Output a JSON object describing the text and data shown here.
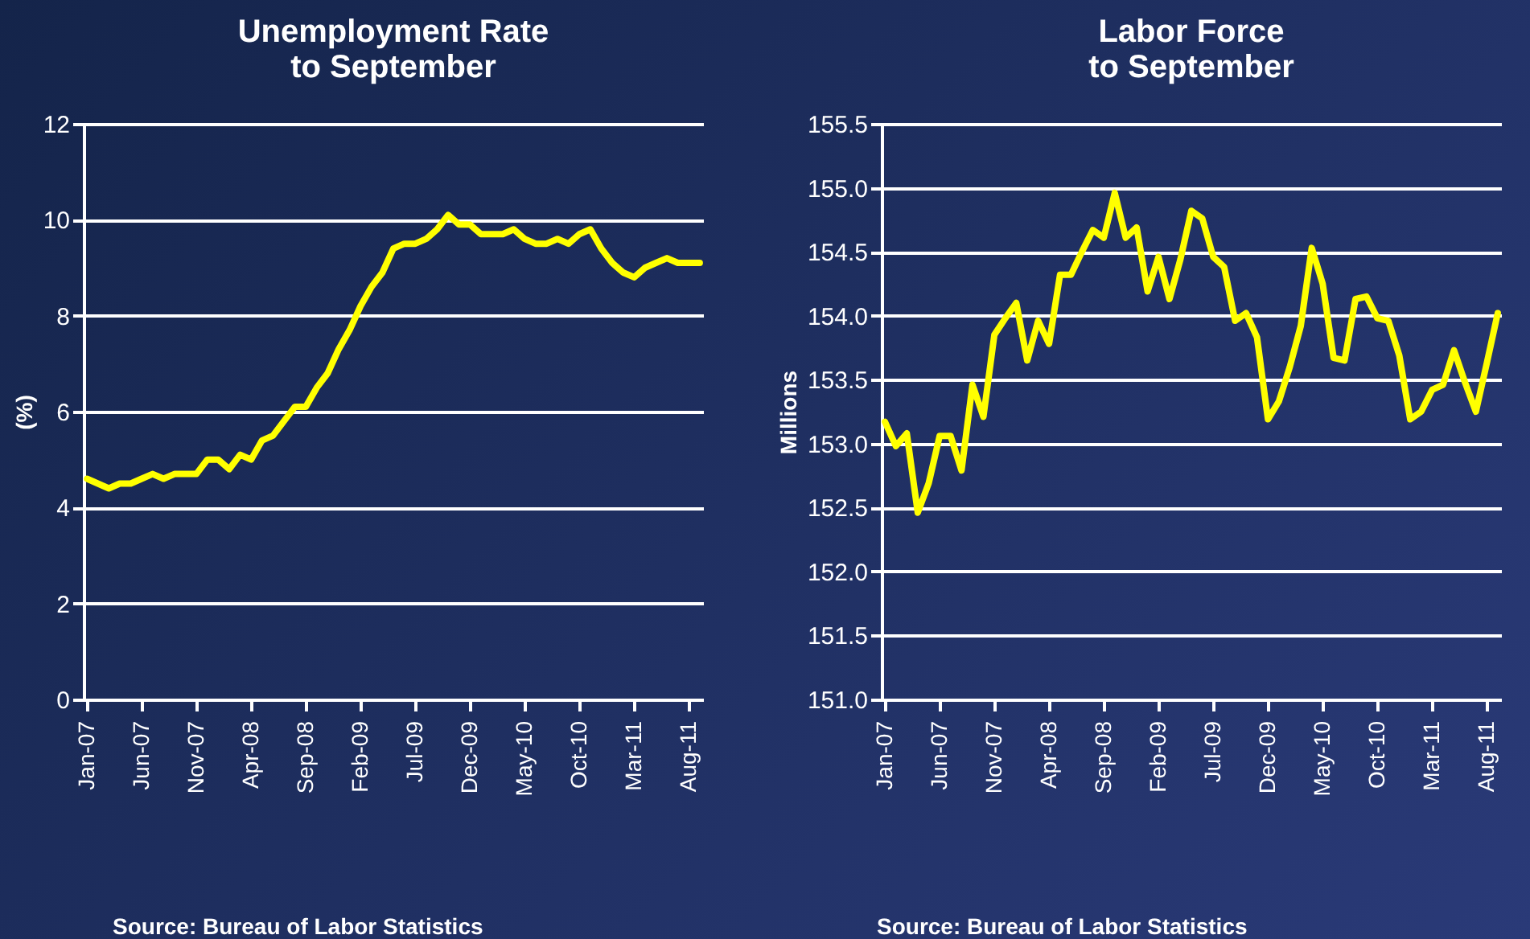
{
  "chart_data": [
    {
      "type": "line",
      "title": "Unemployment Rate\nto September",
      "ylabel": "(%)",
      "categories": [
        "Jan-07",
        null,
        null,
        null,
        null,
        "Jun-07",
        null,
        null,
        null,
        null,
        "Nov-07",
        null,
        null,
        null,
        null,
        "Apr-08",
        null,
        null,
        null,
        null,
        "Sep-08",
        null,
        null,
        null,
        null,
        "Feb-09",
        null,
        null,
        null,
        null,
        "Jul-09",
        null,
        null,
        null,
        null,
        "Dec-09",
        null,
        null,
        null,
        null,
        "May-10",
        null,
        null,
        null,
        null,
        "Oct-10",
        null,
        null,
        null,
        null,
        "Mar-11",
        null,
        null,
        null,
        null,
        "Aug-11",
        null
      ],
      "series": [
        {
          "color": "#ffff00",
          "values": [
            4.6,
            4.5,
            4.4,
            4.5,
            4.5,
            4.6,
            4.7,
            4.6,
            4.7,
            4.7,
            4.7,
            5.0,
            5.0,
            4.8,
            5.1,
            5.0,
            5.4,
            5.5,
            5.8,
            6.1,
            6.1,
            6.5,
            6.8,
            7.3,
            7.7,
            8.2,
            8.6,
            8.9,
            9.4,
            9.5,
            9.5,
            9.6,
            9.8,
            10.1,
            9.9,
            9.9,
            9.7,
            9.7,
            9.7,
            9.8,
            9.6,
            9.5,
            9.5,
            9.6,
            9.5,
            9.7,
            9.8,
            9.4,
            9.1,
            8.9,
            8.8,
            9.0,
            9.1,
            9.2,
            9.1,
            9.1,
            9.1
          ]
        }
      ],
      "ylim": [
        0,
        12
      ],
      "yticks": [
        0,
        2,
        4,
        6,
        8,
        10,
        12
      ],
      "grid": "y",
      "annotations": [
        "Source: Bureau of Labor Statistics"
      ]
    },
    {
      "type": "line",
      "title": "Labor Force\nto September",
      "ylabel": "Millions",
      "categories": [
        "Jan-07",
        null,
        null,
        null,
        null,
        "Jun-07",
        null,
        null,
        null,
        null,
        "Nov-07",
        null,
        null,
        null,
        null,
        "Apr-08",
        null,
        null,
        null,
        null,
        "Sep-08",
        null,
        null,
        null,
        null,
        "Feb-09",
        null,
        null,
        null,
        null,
        "Jul-09",
        null,
        null,
        null,
        null,
        "Dec-09",
        null,
        null,
        null,
        null,
        "May-10",
        null,
        null,
        null,
        null,
        "Oct-10",
        null,
        null,
        null,
        null,
        "Mar-11",
        null,
        null,
        null,
        null,
        "Aug-11",
        null
      ],
      "series": [
        {
          "color": "#ffff00",
          "values": [
            153.17,
            152.98,
            153.08,
            152.46,
            152.69,
            153.06,
            153.06,
            152.79,
            153.46,
            153.21,
            153.85,
            153.98,
            154.1,
            153.65,
            153.96,
            153.78,
            154.32,
            154.32,
            154.5,
            154.67,
            154.61,
            154.96,
            154.61,
            154.69,
            154.19,
            154.46,
            154.13,
            154.44,
            154.82,
            154.76,
            154.46,
            154.38,
            153.96,
            154.02,
            153.83,
            153.19,
            153.33,
            153.6,
            153.92,
            154.53,
            154.25,
            153.67,
            153.65,
            154.13,
            154.15,
            153.98,
            153.96,
            153.69,
            153.19,
            153.25,
            153.42,
            153.46,
            153.73,
            153.48,
            153.25,
            153.63,
            154.02
          ]
        }
      ],
      "ylim": [
        151,
        155.5
      ],
      "yticks": [
        {
          "value": 151,
          "label": "151.0"
        },
        151.5,
        {
          "value": 152,
          "label": "152.0"
        },
        152.5,
        {
          "value": 153,
          "label": "153.0"
        },
        153.5,
        {
          "value": 154,
          "label": "154.0"
        },
        154.5,
        {
          "value": 155,
          "label": "155.0"
        },
        155.5
      ],
      "grid": "y",
      "annotations": [
        "Source: Bureau of Labor Statistics"
      ]
    }
  ]
}
